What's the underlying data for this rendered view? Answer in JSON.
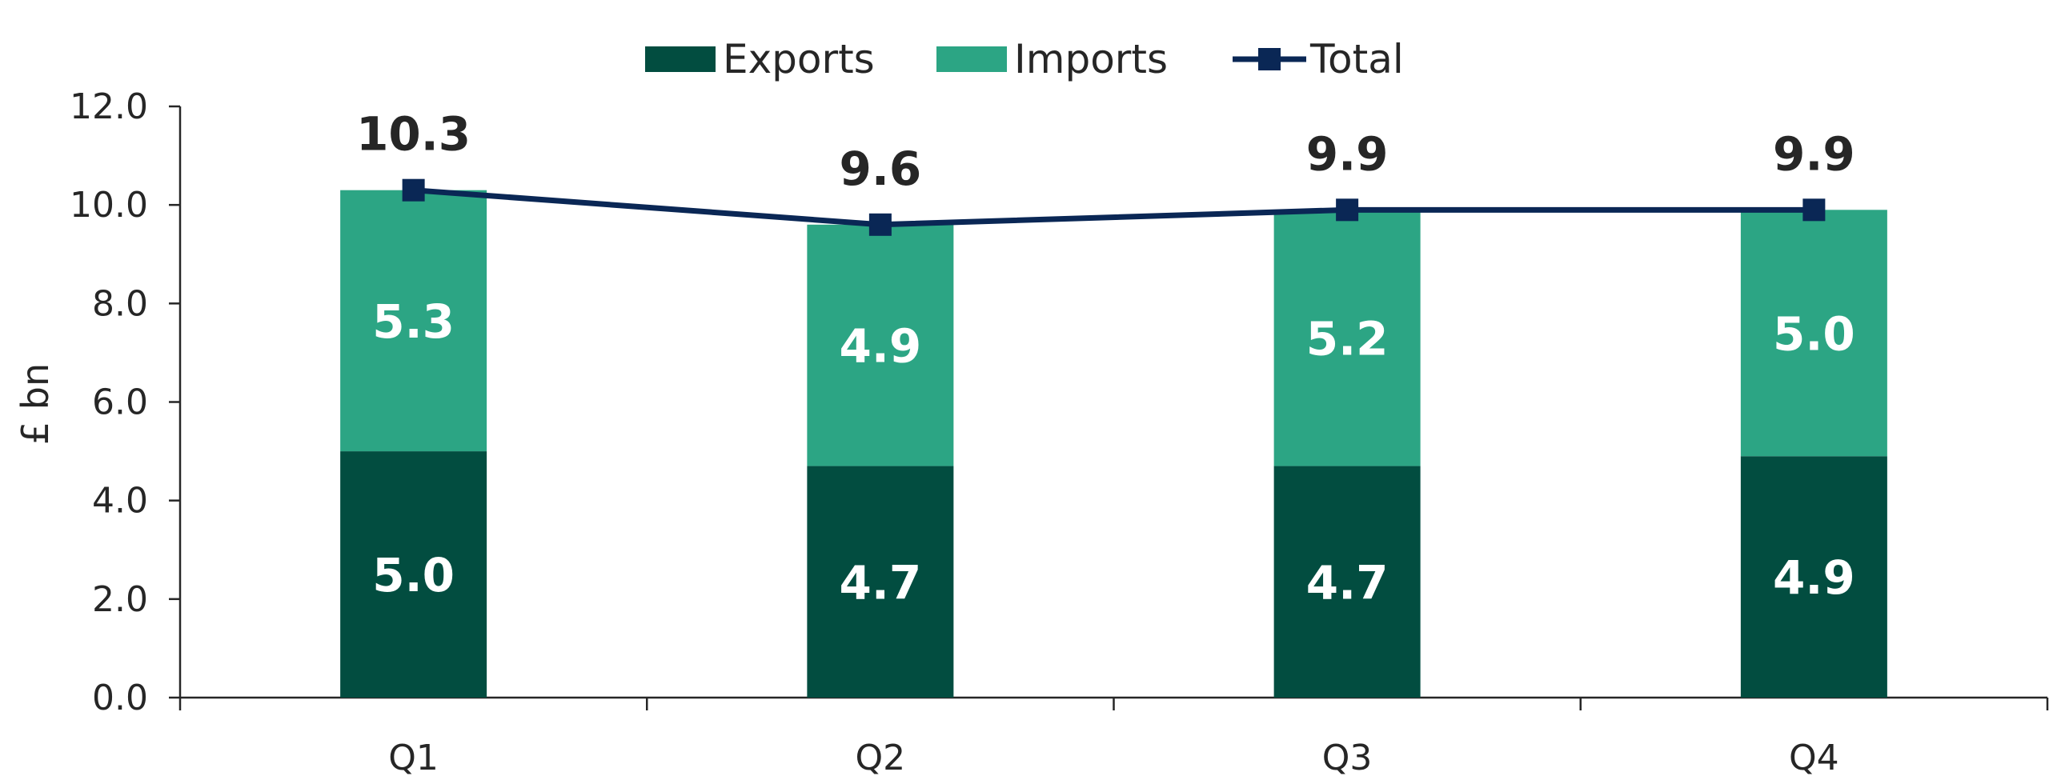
{
  "chart_data": {
    "type": "bar",
    "stacked": true,
    "categories": [
      "Q1",
      "Q2",
      "Q3",
      "Q4"
    ],
    "series": [
      {
        "name": "Exports",
        "type": "bar",
        "values": [
          5.0,
          4.7,
          4.7,
          4.9
        ],
        "labels": [
          "5.0",
          "4.7",
          "4.7",
          "4.9"
        ],
        "color": "#024D40"
      },
      {
        "name": "Imports",
        "type": "bar",
        "values": [
          5.3,
          4.9,
          5.2,
          5.0
        ],
        "labels": [
          "5.3",
          "4.9",
          "5.2",
          "5.0"
        ],
        "color": "#2CA584"
      },
      {
        "name": "Total",
        "type": "line",
        "values": [
          10.3,
          9.6,
          9.9,
          9.9
        ],
        "labels": [
          "10.3",
          "9.6",
          "9.9",
          "9.9"
        ],
        "color": "#0A2755"
      }
    ],
    "title": "",
    "xlabel": "",
    "ylabel": "£ bn",
    "ylim": [
      0,
      12
    ],
    "yticks": [
      "0.0",
      "2.0",
      "4.0",
      "6.0",
      "8.0",
      "10.0",
      "12.0"
    ],
    "grid": false,
    "legend": "top-center"
  }
}
